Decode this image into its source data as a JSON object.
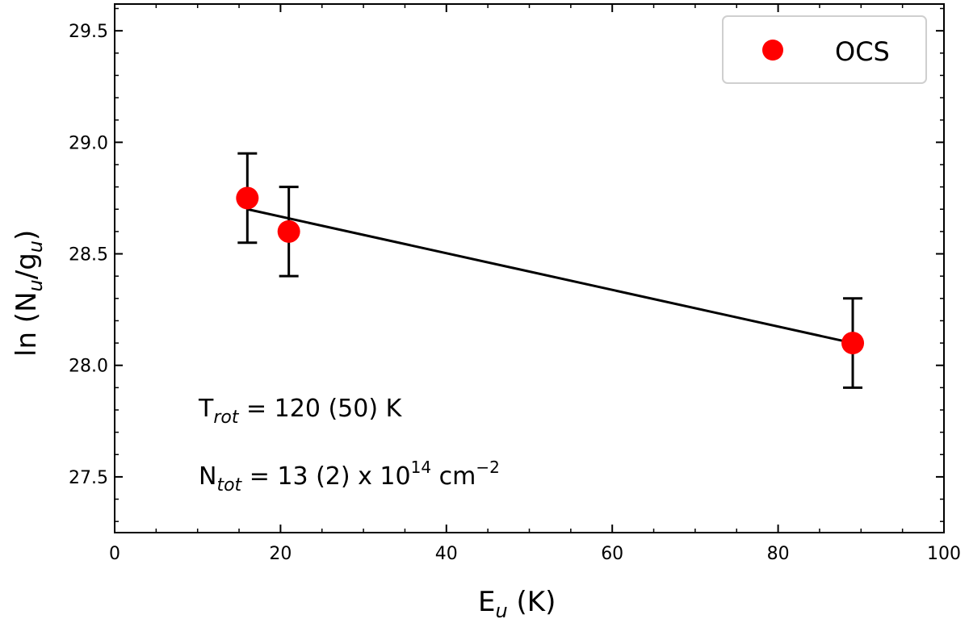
{
  "chart_data": {
    "type": "scatter",
    "xlabel": {
      "main": "E",
      "sub": "u",
      "rest": " (K)"
    },
    "ylabel": {
      "pre": "ln (N",
      "sub1": "u",
      "mid": "/g",
      "sub2": "u",
      "post": ")"
    },
    "xlim": [
      0,
      100
    ],
    "ylim": [
      27.25,
      29.62
    ],
    "x_ticks": [
      0,
      20,
      40,
      60,
      80,
      100
    ],
    "x_tick_labels": [
      "0",
      "20",
      "40",
      "60",
      "80",
      "100"
    ],
    "y_ticks": [
      27.5,
      28.0,
      28.5,
      29.0,
      29.5
    ],
    "y_tick_labels": [
      "27.5",
      "28.0",
      "28.5",
      "29.0",
      "29.5"
    ],
    "x_minor_step": 5,
    "y_minor_step": 0.1,
    "grid": false,
    "legend_position": "top-right",
    "series": [
      {
        "name": "OCS",
        "color": "#ff0000",
        "points": [
          {
            "x": 16,
            "y": 28.75,
            "err": 0.2
          },
          {
            "x": 21,
            "y": 28.6,
            "err": 0.2
          },
          {
            "x": 89,
            "y": 28.1,
            "err": 0.2
          }
        ]
      }
    ],
    "fit_line": {
      "color": "#000000",
      "x": [
        16,
        89
      ],
      "y": [
        28.7,
        28.1
      ]
    },
    "annotations": [
      {
        "main": "T",
        "sub": "rot",
        "rest": " = 120 (50) K",
        "sup": "",
        "tail": ""
      },
      {
        "main": "N",
        "sub": "tot",
        "rest": " = 13 (2) x 10",
        "sup": "14",
        "tail": " cm",
        "sup2": "−2"
      }
    ]
  }
}
